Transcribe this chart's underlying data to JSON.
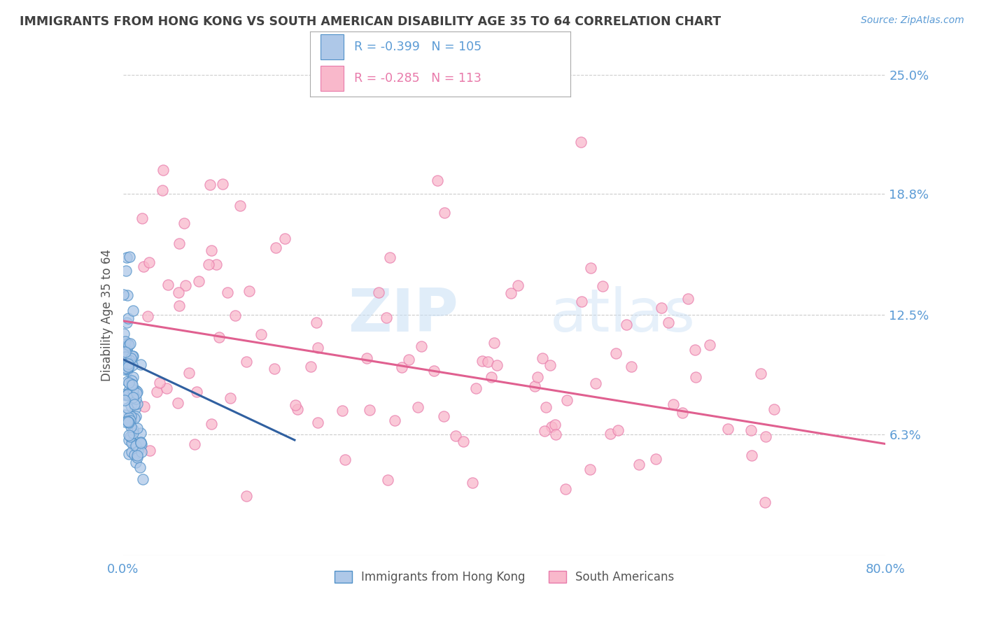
{
  "title": "IMMIGRANTS FROM HONG KONG VS SOUTH AMERICAN DISABILITY AGE 35 TO 64 CORRELATION CHART",
  "source_text": "Source: ZipAtlas.com",
  "ylabel": "Disability Age 35 to 64",
  "x_min": 0.0,
  "x_max": 0.8,
  "y_min": 0.0,
  "y_max": 0.25,
  "hk_R": -0.399,
  "hk_N": 105,
  "sa_R": -0.285,
  "sa_N": 113,
  "hk_color": "#aec8e8",
  "sa_color": "#f9b8cb",
  "hk_edge_color": "#4f90c8",
  "sa_edge_color": "#e87aaa",
  "trend_hk_color": "#3060a0",
  "trend_sa_color": "#e06090",
  "legend_label_hk": "Immigrants from Hong Kong",
  "legend_label_sa": "South Americans",
  "watermark_zip": "ZIP",
  "watermark_atlas": "atlas",
  "background_color": "#ffffff",
  "grid_color": "#cccccc",
  "axis_label_color": "#5b9bd5",
  "title_color": "#404040",
  "hk_trend_x0": 0.0,
  "hk_trend_x1": 0.18,
  "hk_trend_y0": 0.102,
  "hk_trend_y1": 0.06,
  "sa_trend_x0": 0.0,
  "sa_trend_x1": 0.8,
  "sa_trend_y0": 0.122,
  "sa_trend_y1": 0.058
}
